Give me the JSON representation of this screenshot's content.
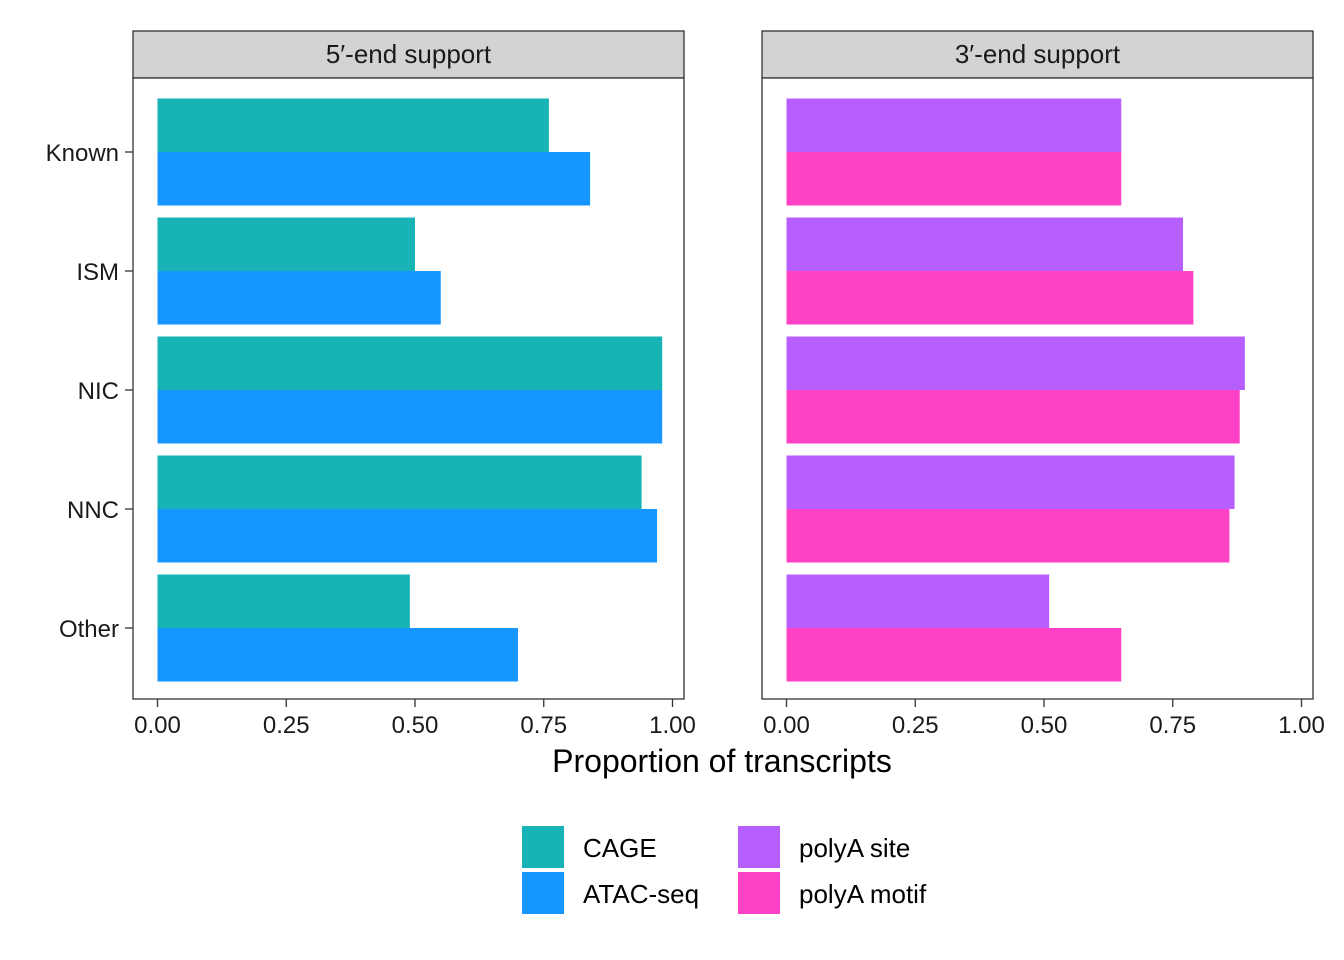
{
  "chart_data": {
    "type": "bar",
    "orientation": "horizontal",
    "xlabel": "Proportion of transcripts",
    "xlim": [
      0,
      1
    ],
    "xticks": [
      "0.00",
      "0.25",
      "0.50",
      "0.75",
      "1.00"
    ],
    "categories": [
      "Known",
      "ISM",
      "NIC",
      "NNC",
      "Other"
    ],
    "grid": false,
    "legend_position": "bottom",
    "colors": {
      "CAGE": "#17b3b5",
      "ATAC-seq": "#1597ff",
      "polyA site": "#b75eff",
      "polyA motif": "#ff41c5"
    },
    "facets": [
      {
        "title": "5′-end support",
        "series": [
          {
            "name": "CAGE",
            "values": [
              0.76,
              0.5,
              0.98,
              0.94,
              0.49
            ]
          },
          {
            "name": "ATAC-seq",
            "values": [
              0.84,
              0.55,
              0.98,
              0.97,
              0.7
            ]
          }
        ]
      },
      {
        "title": "3′-end support",
        "series": [
          {
            "name": "polyA site",
            "values": [
              0.65,
              0.77,
              0.89,
              0.87,
              0.51
            ]
          },
          {
            "name": "polyA motif",
            "values": [
              0.65,
              0.79,
              0.88,
              0.86,
              0.65
            ]
          }
        ]
      }
    ],
    "legend": [
      [
        "CAGE",
        "ATAC-seq"
      ],
      [
        "polyA site",
        "polyA motif"
      ]
    ]
  }
}
